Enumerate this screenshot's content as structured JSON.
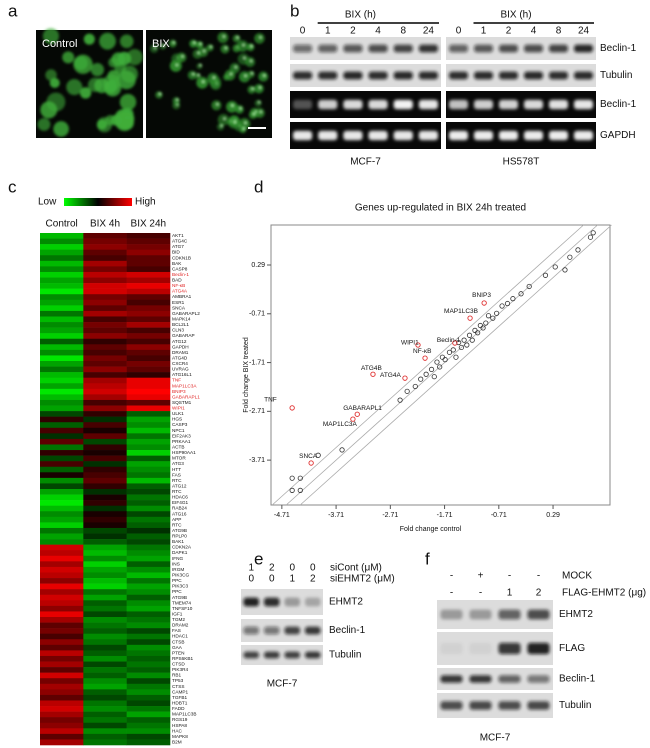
{
  "panel_a": {
    "letter": "a",
    "images": [
      "Control",
      "BIX"
    ]
  },
  "panel_b": {
    "letter": "b",
    "blots": [
      {
        "cell_line": "MCF-7",
        "treatment": "BIX (h)",
        "lanes": [
          "0",
          "1",
          "2",
          "4",
          "8",
          "24"
        ]
      },
      {
        "cell_line": "HS578T",
        "treatment": "BIX (h)",
        "lanes": [
          "0",
          "1",
          "2",
          "4",
          "8",
          "24"
        ]
      }
    ],
    "rows": [
      "Beclin-1",
      "Tubulin",
      "Beclin-1",
      "GAPDH"
    ]
  },
  "panel_c": {
    "letter": "c",
    "legend": {
      "low": "Low",
      "high": "High"
    },
    "columns": [
      "Control",
      "BIX 4h",
      "BIX 24h"
    ],
    "genes": [
      "AKT1",
      "ATG4C",
      "ATG7",
      "BID",
      "CDKN1B",
      "BAK",
      "CASP8",
      "Beclin-1",
      "BAD",
      "NF-κB",
      "ATG4A",
      "AMBRA1",
      "ESR1",
      "SNCA",
      "GABARAPL2",
      "MAPK14",
      "BCL2L1",
      "CLN3",
      "GABARAP",
      "ATG12",
      "GAPDH",
      "DRAM1",
      "ATG4D",
      "CXCR4",
      "UVRAG",
      "ATG16L1",
      "TNF",
      "MAP1LC3A",
      "BNIP3",
      "GABARAPL1",
      "SQSTM1",
      "WIPI1",
      "ULK1",
      "HGS",
      "CASP3",
      "NPC1",
      "EIF2AK3",
      "PRKAA1",
      "ACTB",
      "HSP90AA1",
      "MTOR",
      "ATG3",
      "HTT",
      "FAS",
      "RTC",
      "ATG12",
      "RTC",
      "HDAC6",
      "EIF4G1",
      "RAB24",
      "ATG16",
      "APP",
      "RTC",
      "ATG9B",
      "RPLP0",
      "BAK1",
      "CDKN2A",
      "DAPK1",
      "IFNG",
      "INS",
      "IRGM",
      "PIK3CG",
      "PPC",
      "PIK3C3",
      "PPC",
      "ATG9B",
      "TMEM74",
      "TNFSF10",
      "IGF1",
      "TGM2",
      "DRAM2",
      "FAS",
      "HDAC1",
      "CTSB",
      "GAA",
      "PTEN",
      "RPS6KB1",
      "CTSD",
      "PIK3R4",
      "RB1",
      "TP53",
      "CTSS",
      "CAMP1",
      "TGFB1",
      "HDBT1",
      "FADD",
      "MAP1LC3B",
      "RGS19",
      "HSPA8",
      "HAC",
      "MAPK8",
      "B2M"
    ],
    "highlighted": [
      7,
      9,
      10,
      26,
      27,
      28,
      29,
      31
    ],
    "highlight_color": "#e02020",
    "values": [
      [
        -0.7,
        0.3,
        0.2
      ],
      [
        -0.5,
        0.4,
        0.3
      ],
      [
        -0.8,
        0.5,
        0.4
      ],
      [
        -0.6,
        0.3,
        0.5
      ],
      [
        -0.4,
        0.2,
        0.3
      ],
      [
        -0.7,
        0.6,
        0.3
      ],
      [
        -0.5,
        0.4,
        0.2
      ],
      [
        -0.8,
        0.7,
        0.8
      ],
      [
        -0.6,
        0.5,
        0.6
      ],
      [
        -0.7,
        0.8,
        0.9
      ],
      [
        -0.9,
        0.8,
        0.7
      ],
      [
        -0.5,
        0.4,
        0.3
      ],
      [
        -0.6,
        0.5,
        0.2
      ],
      [
        -0.8,
        0.3,
        0.4
      ],
      [
        -0.4,
        0.6,
        0.5
      ],
      [
        -0.7,
        0.2,
        0.3
      ],
      [
        -0.5,
        0.4,
        0.6
      ],
      [
        -0.6,
        0.3,
        0.2
      ],
      [
        -0.8,
        0.5,
        0.4
      ],
      [
        -0.3,
        0.1,
        0.2
      ],
      [
        -0.7,
        0.3,
        0.5
      ],
      [
        -0.5,
        0.2,
        0.3
      ],
      [
        -0.9,
        0.4,
        0.2
      ],
      [
        -0.6,
        0.3,
        0.4
      ],
      [
        -0.4,
        0.5,
        0.3
      ],
      [
        -0.7,
        0.2,
        0.1
      ],
      [
        -0.8,
        0.6,
        0.9
      ],
      [
        -0.6,
        0.7,
        0.9
      ],
      [
        -0.9,
        0.8,
        1.0
      ],
      [
        -0.7,
        0.6,
        0.9
      ],
      [
        -0.5,
        0.2,
        0.3
      ],
      [
        -0.6,
        0.5,
        0.9
      ],
      [
        -0.2,
        0.1,
        -0.3
      ],
      [
        0.1,
        -0.1,
        -0.6
      ],
      [
        -0.3,
        0.2,
        -0.5
      ],
      [
        0.2,
        0,
        -0.7
      ],
      [
        -0.1,
        0.3,
        -0.4
      ],
      [
        0.3,
        -0.2,
        -0.6
      ],
      [
        -0.4,
        0.1,
        -0.5
      ],
      [
        0.1,
        0,
        -0.8
      ],
      [
        -0.2,
        0.2,
        -0.3
      ],
      [
        0.2,
        -0.1,
        -0.6
      ],
      [
        -0.3,
        0.1,
        -0.5
      ],
      [
        0,
        0.2,
        -0.4
      ],
      [
        -0.5,
        0.3,
        -0.7
      ],
      [
        -0.2,
        0.1,
        -0.3
      ],
      [
        -0.6,
        -0.1,
        -0.2
      ],
      [
        -0.8,
        0,
        -0.4
      ],
      [
        -0.9,
        0.1,
        -0.3
      ],
      [
        -0.7,
        -0.1,
        -0.5
      ],
      [
        -0.5,
        0,
        -0.2
      ],
      [
        -0.6,
        0.1,
        -0.4
      ],
      [
        -0.8,
        0,
        -0.3
      ],
      [
        -0.4,
        -0.2,
        -0.1
      ],
      [
        -0.6,
        -0.1,
        -0.3
      ],
      [
        -0.5,
        -0.3,
        -0.2
      ],
      [
        0.8,
        -0.6,
        -0.4
      ],
      [
        0.7,
        -0.7,
        -0.5
      ],
      [
        0.9,
        -0.5,
        -0.6
      ],
      [
        0.6,
        -0.8,
        -0.3
      ],
      [
        0.8,
        -0.6,
        -0.5
      ],
      [
        0.7,
        -0.5,
        -0.7
      ],
      [
        0.5,
        -0.7,
        -0.4
      ],
      [
        0.9,
        -0.8,
        -0.6
      ],
      [
        0.6,
        -0.4,
        -0.5
      ],
      [
        0.8,
        -0.6,
        -0.3
      ],
      [
        0.7,
        -0.3,
        -0.5
      ],
      [
        0.5,
        -0.4,
        -0.6
      ],
      [
        0.9,
        -0.2,
        -0.3
      ],
      [
        0.6,
        -0.5,
        -0.4
      ],
      [
        0.3,
        -0.4,
        -0.5
      ],
      [
        0.4,
        -0.3,
        -0.2
      ],
      [
        0.2,
        -0.5,
        -0.4
      ],
      [
        0.5,
        -0.4,
        -0.2
      ],
      [
        0.3,
        -0.2,
        -0.5
      ],
      [
        0.7,
        -0.3,
        -0.4
      ],
      [
        0.4,
        -0.5,
        -0.3
      ],
      [
        0.6,
        -0.2,
        -0.4
      ],
      [
        0.3,
        -0.4,
        -0.3
      ],
      [
        0.8,
        -0.3,
        -0.5
      ],
      [
        0.4,
        -0.5,
        -0.2
      ],
      [
        0.6,
        -0.6,
        -0.4
      ],
      [
        0.5,
        -0.3,
        -0.5
      ],
      [
        0.3,
        -0.2,
        -0.3
      ],
      [
        0.7,
        -0.4,
        -0.2
      ],
      [
        0.8,
        -0.5,
        -0.4
      ],
      [
        0.6,
        -0.3,
        -0.6
      ],
      [
        0.4,
        -0.4,
        -0.3
      ],
      [
        0.5,
        -0.2,
        -0.4
      ],
      [
        0.7,
        -0.5,
        -0.5
      ],
      [
        0.3,
        -0.3,
        -0.2
      ],
      [
        0.6,
        -0.4,
        -0.3
      ]
    ]
  },
  "chart_data": {
    "type": "scatter",
    "letter": "d",
    "title": "Genes up-regulated in BIX 24h treated",
    "xlabel": "Fold change control",
    "ylabel": "Fold change BIX treated",
    "xlim": [
      -4.91,
      1.34
    ],
    "ylim": [
      -4.63,
      1.11
    ],
    "xticks": [
      -4.71,
      -3.71,
      -2.71,
      -1.71,
      -0.71,
      0.29
    ],
    "yticks": [
      -3.71,
      -2.71,
      -1.71,
      -0.71,
      0.29
    ],
    "color": "#333333",
    "x": [
      -4.52,
      -4.52,
      -4.37,
      -4.37,
      -4.04,
      -3.6,
      -2.53,
      -2.4,
      -2.25,
      -2.15,
      -2.05,
      -1.95,
      -1.9,
      -1.85,
      -1.8,
      -1.75,
      -1.7,
      -1.62,
      -1.55,
      -1.5,
      -1.45,
      -1.4,
      -1.35,
      -1.3,
      -1.25,
      -1.2,
      -1.15,
      -1.1,
      -1.05,
      -1.0,
      -0.95,
      -0.9,
      -0.82,
      -0.75,
      -0.65,
      -0.55,
      -0.45,
      -0.3,
      -0.15,
      0.15,
      0.33,
      0.51,
      0.6,
      0.75,
      0.98,
      1.03
    ],
    "y": [
      -4.33,
      -4.08,
      -4.33,
      -4.08,
      -3.61,
      -3.5,
      -2.48,
      -2.3,
      -2.2,
      -2.05,
      -1.95,
      -1.85,
      -2.0,
      -1.7,
      -1.8,
      -1.6,
      -1.65,
      -1.5,
      -1.45,
      -1.6,
      -1.3,
      -1.4,
      -1.25,
      -1.35,
      -1.15,
      -1.25,
      -1.05,
      -1.1,
      -0.95,
      -1.0,
      -0.9,
      -0.75,
      -0.8,
      -0.7,
      -0.55,
      -0.5,
      -0.4,
      -0.3,
      -0.15,
      0.08,
      0.25,
      0.19,
      0.45,
      0.6,
      0.86,
      0.95
    ],
    "labeled_points": {
      "color": "#e03030",
      "labels": [
        "TNF",
        "SNCA",
        "GABARAPL1",
        "MAP1LC3A",
        "ATG4B",
        "ATG4A",
        "NF-κB",
        "WIPI1",
        "Beclin-1",
        "MAP1LC3B",
        "BNIP3"
      ],
      "x": [
        -4.52,
        -4.17,
        -3.32,
        -3.4,
        -3.03,
        -2.44,
        -2.07,
        -2.2,
        -1.52,
        -1.24,
        -0.98
      ],
      "y": [
        -2.64,
        -3.77,
        -2.77,
        -2.87,
        -1.95,
        -2.03,
        -1.62,
        -1.35,
        -1.31,
        -0.8,
        -0.49
      ]
    }
  },
  "panel_e": {
    "letter": "e",
    "conditions": [
      {
        "label": "siCont (μM)",
        "doses": [
          "1",
          "2",
          "0",
          "0"
        ]
      },
      {
        "label": "siEHMT2 (μM)",
        "doses": [
          "0",
          "0",
          "1",
          "2"
        ]
      }
    ],
    "rows": [
      "EHMT2",
      "Beclin-1",
      "Tubulin"
    ],
    "cell_line": "MCF-7"
  },
  "panel_f": {
    "letter": "f",
    "conditions": [
      {
        "label": "MOCK",
        "doses": [
          "-",
          "+",
          "-",
          "-"
        ]
      },
      {
        "label": "FLAG-EHMT2 (μg)",
        "doses": [
          "-",
          "-",
          "1",
          "2"
        ]
      }
    ],
    "rows": [
      "EHMT2",
      "FLAG",
      "Beclin-1",
      "Tubulin"
    ],
    "cell_line": "MCF-7"
  }
}
